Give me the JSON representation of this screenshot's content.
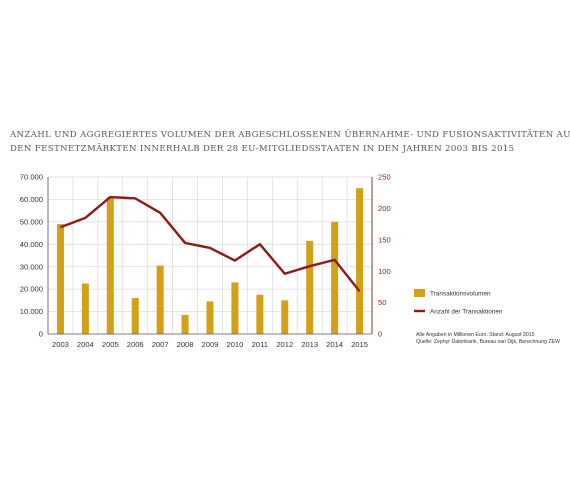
{
  "chart_data": {
    "type": "bar",
    "title_lines": [
      "Anzahl und aggregiertes Volumen der abgeschlossenen Übernahme- und Fusionsaktivitäten auf",
      "den Festnetzmärkten innerhalb der 28 EU-Mitgliedsstaaten in den Jahren 2003 bis 2015"
    ],
    "categories": [
      "2003",
      "2004",
      "2005",
      "2006",
      "2007",
      "2008",
      "2009",
      "2010",
      "2011",
      "2012",
      "2013",
      "2014",
      "2015"
    ],
    "series": [
      {
        "name": "Transaktionsvolumen",
        "type": "bar",
        "axis": "left",
        "color": "#d4a017",
        "values": [
          49000,
          22500,
          61000,
          16000,
          30500,
          8500,
          14500,
          23000,
          17500,
          15000,
          41500,
          50000,
          65000
        ]
      },
      {
        "name": "Anzahl der Transaktionen",
        "type": "line",
        "axis": "right",
        "color": "#8b1a1a",
        "values": [
          170,
          185,
          218,
          216,
          193,
          145,
          137,
          117,
          143,
          96,
          108,
          118,
          68
        ]
      }
    ],
    "left_axis": {
      "ylim": [
        0,
        70000
      ],
      "ticks": [
        "0",
        "10.000",
        "20.000",
        "30.000",
        "40.000",
        "50.000",
        "60.000",
        "70.000"
      ],
      "tick_values": [
        0,
        10000,
        20000,
        30000,
        40000,
        50000,
        60000,
        70000
      ]
    },
    "right_axis": {
      "ylim": [
        0,
        250
      ],
      "ticks": [
        "0",
        "50",
        "100",
        "150",
        "200",
        "250"
      ],
      "tick_values": [
        0,
        50,
        100,
        150,
        200,
        250
      ]
    },
    "grid": true,
    "legend_position": "right",
    "notes": [
      "Alle Angaben in Millionen Euro. Stand: August 2015",
      "Quelle: Zephyr Datenbank, Bureau van Dijk, Berechnung ZEW"
    ]
  },
  "colors": {
    "bar": "#d4a017",
    "line": "#8b1a1a",
    "grid": "#d9d9d9",
    "axis": "#555555"
  }
}
